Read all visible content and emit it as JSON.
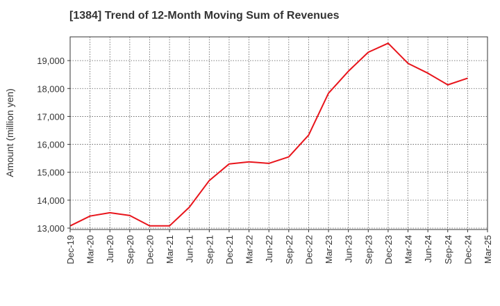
{
  "chart_data": {
    "type": "line",
    "title": "[1384]  Trend of 12-Month Moving Sum of Revenues",
    "ylabel": "Amount (million yen)",
    "xlabel": "",
    "x_ticks": [
      "Dec-19",
      "Mar-20",
      "Jun-20",
      "Sep-20",
      "Dec-20",
      "Mar-21",
      "Jun-21",
      "Sep-21",
      "Dec-21",
      "Mar-22",
      "Jun-22",
      "Sep-22",
      "Dec-22",
      "Mar-23",
      "Jun-23",
      "Sep-23",
      "Dec-23",
      "Mar-24",
      "Jun-24",
      "Sep-24",
      "Dec-24",
      "Mar-25"
    ],
    "y_ticks": [
      "13,000",
      "14,000",
      "15,000",
      "16,000",
      "17,000",
      "18,000",
      "19,000"
    ],
    "y_tick_values": [
      13000,
      14000,
      15000,
      16000,
      17000,
      18000,
      19000
    ],
    "ylim": [
      12950,
      19850
    ],
    "grid": true,
    "series_color": "#e8141b",
    "series": [
      {
        "x": [
          "Dec-19",
          "Mar-20",
          "Jun-20",
          "Sep-20",
          "Dec-20",
          "Mar-21",
          "Jun-21",
          "Sep-21",
          "Dec-21",
          "Mar-22",
          "Jun-22",
          "Sep-22",
          "Dec-22",
          "Mar-23",
          "Jun-23",
          "Sep-23",
          "Dec-23",
          "Mar-24",
          "Jun-24",
          "Sep-24",
          "Dec-24"
        ],
        "values": [
          13080,
          13430,
          13550,
          13450,
          13080,
          13080,
          13750,
          14700,
          15300,
          15370,
          15320,
          15550,
          16330,
          17830,
          18620,
          19300,
          19620,
          18900,
          18550,
          18130,
          18370
        ]
      }
    ]
  }
}
